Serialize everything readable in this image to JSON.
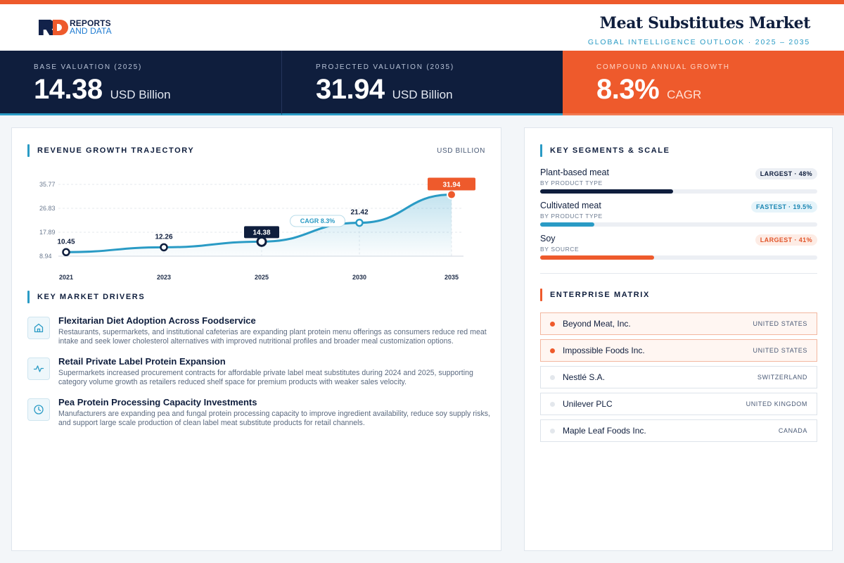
{
  "header": {
    "logo": {
      "line1": "REPORTS",
      "line2": "AND DATA"
    },
    "title": "Meat Substitutes Market",
    "subtitle": "GLOBAL INTELLIGENCE OUTLOOK  ·  2025 – 2035"
  },
  "kpis": [
    {
      "label": "BASE VALUATION (2025)",
      "value": "14.38",
      "unit": "USD Billion"
    },
    {
      "label": "PROJECTED VALUATION (2035)",
      "value": "31.94",
      "unit": "USD Billion"
    },
    {
      "label": "COMPOUND ANNUAL GROWTH",
      "value": "8.3%",
      "unit": "CAGR"
    }
  ],
  "trajectory": {
    "title": "REVENUE GROWTH TRAJECTORY",
    "unit": "USD BILLION"
  },
  "chart_data": {
    "type": "line",
    "x": [
      "2021",
      "2023",
      "2025",
      "2030",
      "2035"
    ],
    "values": [
      10.45,
      12.26,
      14.38,
      21.42,
      31.94
    ],
    "data_labels": [
      "10.45",
      "12.26",
      "14.38",
      "21.42",
      "31.94"
    ],
    "yticks": [
      "35.77",
      "26.83",
      "17.89",
      "8.94"
    ],
    "ytick_values": [
      35.77,
      26.83,
      17.89,
      8.94
    ],
    "ylim": [
      8.94,
      35.77
    ],
    "annotation": "CAGR 8.3%",
    "highlight_base": "2025",
    "highlight_end": "2035",
    "grid": true,
    "colors": {
      "line": "#2a9bc5",
      "base": "#0f1e3d",
      "end": "#ee5a2c"
    }
  },
  "drivers": {
    "title": "KEY MARKET DRIVERS",
    "items": [
      {
        "icon": "building-icon",
        "title": "Flexitarian Diet Adoption Across Foodservice",
        "desc": "Restaurants, supermarkets, and institutional cafeterias are expanding plant protein menu offerings as consumers reduce red meat intake and seek lower cholesterol alternatives with improved nutritional profiles and broader meal customization options."
      },
      {
        "icon": "pulse-icon",
        "title": "Retail Private Label Protein Expansion",
        "desc": "Supermarkets increased procurement contracts for affordable private label meat substitutes during 2024 and 2025, supporting category volume growth as retailers reduced shelf space for premium products with weaker sales velocity."
      },
      {
        "icon": "clock-icon",
        "title": "Pea Protein Processing Capacity Investments",
        "desc": "Manufacturers are expanding pea and fungal protein processing capacity to improve ingredient availability, reduce soy supply risks, and support large scale production of clean label meat substitute products for retail channels."
      }
    ]
  },
  "segments": {
    "title": "KEY SEGMENTS & SCALE",
    "items": [
      {
        "name": "Plant-based meat",
        "sub": "BY PRODUCT TYPE",
        "badge": "LARGEST · 48%",
        "share": 0.48,
        "color": "#0f1e3d",
        "badge_bg": "#eceff4",
        "badge_color": "#0f1e3d"
      },
      {
        "name": "Cultivated meat",
        "sub": "BY PRODUCT TYPE",
        "badge": "FASTEST · 19.5%",
        "share": 0.195,
        "color": "#2a9bc5",
        "badge_bg": "#e6f4fa",
        "badge_color": "#1b86b3"
      },
      {
        "name": "Soy",
        "sub": "BY SOURCE",
        "badge": "LARGEST · 41%",
        "share": 0.41,
        "color": "#ee5a2c",
        "badge_bg": "#fdece5",
        "badge_color": "#e2552a"
      }
    ]
  },
  "enterprise": {
    "title": "ENTERPRISE MATRIX",
    "items": [
      {
        "name": "Beyond Meat, Inc.",
        "country": "UNITED STATES",
        "highlight": true
      },
      {
        "name": "Impossible Foods Inc.",
        "country": "UNITED STATES",
        "highlight": true
      },
      {
        "name": "Nestlé S.A.",
        "country": "SWITZERLAND",
        "highlight": false
      },
      {
        "name": "Unilever PLC",
        "country": "UNITED KINGDOM",
        "highlight": false
      },
      {
        "name": "Maple Leaf Foods Inc.",
        "country": "CANADA",
        "highlight": false
      }
    ]
  }
}
